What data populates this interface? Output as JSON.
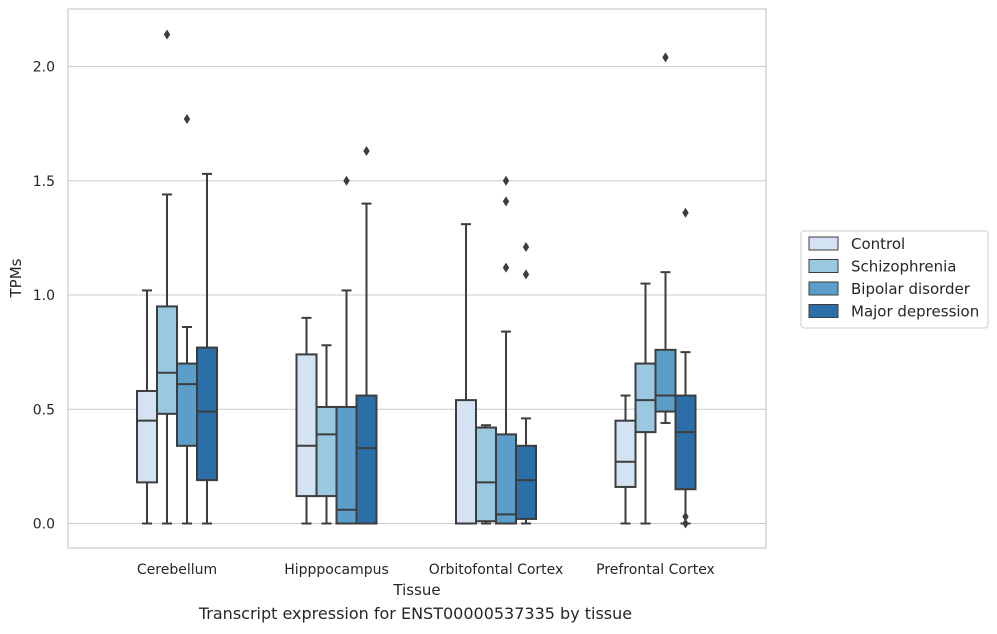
{
  "chart_data": {
    "type": "box",
    "title": "",
    "xlabel": "Tissue",
    "ylabel": "TPMs",
    "ylim": [
      -0.1,
      2.25
    ],
    "yticks": [
      "0.0",
      "0.5",
      "1.0",
      "1.5",
      "2.0"
    ],
    "grid": "horizontal",
    "legend_position": "right",
    "categories": [
      "Cerebellum",
      "Hipppocampus",
      "Orbitofontal Cortex",
      "Prefrontal Cortex"
    ],
    "series": [
      {
        "name": "Control",
        "color": "#d3e3f3",
        "boxes": [
          {
            "whisker_low": 0.0,
            "q1": 0.18,
            "median": 0.45,
            "q3": 0.58,
            "whisker_high": 1.02,
            "outliers": []
          },
          {
            "whisker_low": 0.0,
            "q1": 0.12,
            "median": 0.34,
            "q3": 0.74,
            "whisker_high": 0.9,
            "outliers": []
          },
          {
            "whisker_low": 0.0,
            "q1": 0.0,
            "median": 0.0,
            "q3": 0.54,
            "whisker_high": 1.31,
            "outliers": []
          },
          {
            "whisker_low": 0.0,
            "q1": 0.16,
            "median": 0.27,
            "q3": 0.45,
            "whisker_high": 0.56,
            "outliers": []
          }
        ]
      },
      {
        "name": "Schizophrenia",
        "color": "#9ac8e0",
        "boxes": [
          {
            "whisker_low": 0.0,
            "q1": 0.48,
            "median": 0.66,
            "q3": 0.95,
            "whisker_high": 1.44,
            "outliers": [
              2.14
            ]
          },
          {
            "whisker_low": 0.0,
            "q1": 0.12,
            "median": 0.39,
            "q3": 0.51,
            "whisker_high": 0.78,
            "outliers": []
          },
          {
            "whisker_low": 0.0,
            "q1": 0.01,
            "median": 0.18,
            "q3": 0.42,
            "whisker_high": 0.43,
            "outliers": []
          },
          {
            "whisker_low": 0.0,
            "q1": 0.4,
            "median": 0.54,
            "q3": 0.7,
            "whisker_high": 1.05,
            "outliers": []
          }
        ]
      },
      {
        "name": "Bipolar disorder",
        "color": "#5a9ec9",
        "boxes": [
          {
            "whisker_low": 0.0,
            "q1": 0.34,
            "median": 0.61,
            "q3": 0.7,
            "whisker_high": 0.86,
            "outliers": [
              1.77
            ]
          },
          {
            "whisker_low": 0.0,
            "q1": 0.0,
            "median": 0.06,
            "q3": 0.51,
            "whisker_high": 1.02,
            "outliers": [
              1.5
            ]
          },
          {
            "whisker_low": 0.0,
            "q1": 0.0,
            "median": 0.04,
            "q3": 0.39,
            "whisker_high": 0.84,
            "outliers": [
              1.12,
              1.41,
              1.5
            ]
          },
          {
            "whisker_low": 0.44,
            "q1": 0.49,
            "median": 0.56,
            "q3": 0.76,
            "whisker_high": 1.1,
            "outliers": [
              2.04
            ]
          }
        ]
      },
      {
        "name": "Major depression",
        "color": "#2b6ea8",
        "boxes": [
          {
            "whisker_low": 0.0,
            "q1": 0.19,
            "median": 0.49,
            "q3": 0.77,
            "whisker_high": 1.53,
            "outliers": []
          },
          {
            "whisker_low": 0.0,
            "q1": 0.0,
            "median": 0.33,
            "q3": 0.56,
            "whisker_high": 1.4,
            "outliers": [
              1.63
            ]
          },
          {
            "whisker_low": 0.0,
            "q1": 0.02,
            "median": 0.19,
            "q3": 0.34,
            "whisker_high": 0.46,
            "outliers": [
              1.09,
              1.21
            ]
          },
          {
            "whisker_low": 0.0,
            "q1": 0.15,
            "median": 0.4,
            "q3": 0.56,
            "whisker_high": 0.75,
            "outliers": [
              0.0,
              0.03,
              1.36
            ]
          }
        ]
      }
    ]
  },
  "caption": "Transcript expression for ENST00000537335 by tissue"
}
